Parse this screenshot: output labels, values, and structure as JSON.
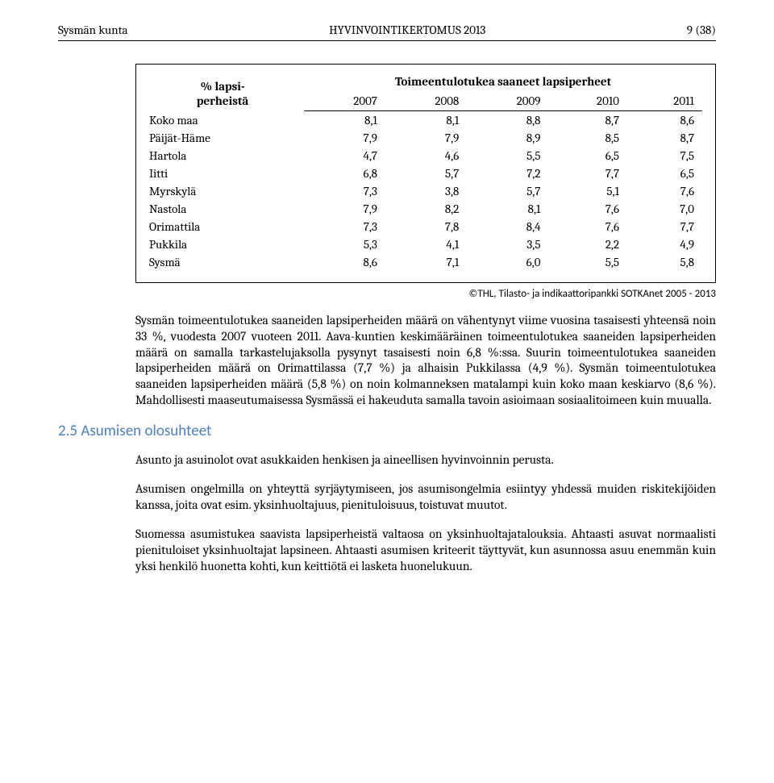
{
  "header": {
    "left": "Sysmän kunta",
    "center": "HYVINVOINTIKERTOMUS 2013",
    "right": "9 (38)"
  },
  "table": {
    "type": "table",
    "title": "Toimeentulotukea saaneet lapsiperheet",
    "row_header": "% lapsi-\nperheistä",
    "columns": [
      "2007",
      "2008",
      "2009",
      "2010",
      "2011"
    ],
    "rows": [
      {
        "label": "Koko maa",
        "values": [
          "8,1",
          "8,1",
          "8,8",
          "8,7",
          "8,6"
        ]
      },
      {
        "label": "Päijät-Häme",
        "values": [
          "7,9",
          "7,9",
          "8,9",
          "8,5",
          "8,7"
        ]
      },
      {
        "label": "Hartola",
        "values": [
          "4,7",
          "4,6",
          "5,5",
          "6,5",
          "7,5"
        ]
      },
      {
        "label": "Iitti",
        "values": [
          "6,8",
          "5,7",
          "7,2",
          "7,7",
          "6,5"
        ]
      },
      {
        "label": "Myrskylä",
        "values": [
          "7,3",
          "3,8",
          "5,7",
          "5,1",
          "7,6"
        ]
      },
      {
        "label": "Nastola",
        "values": [
          "7,9",
          "8,2",
          "8,1",
          "7,6",
          "7,0"
        ]
      },
      {
        "label": "Orimattila",
        "values": [
          "7,3",
          "7,8",
          "8,4",
          "7,6",
          "7,7"
        ]
      },
      {
        "label": "Pukkila",
        "values": [
          "5,3",
          "4,1",
          "3,5",
          "2,2",
          "4,9"
        ]
      },
      {
        "label": "Sysmä",
        "values": [
          "8,6",
          "7,1",
          "6,0",
          "5,5",
          "5,8"
        ]
      }
    ],
    "border_color": "#000000",
    "background_color": "#ffffff",
    "fontsize": 15
  },
  "source_note": "©THL, Tilasto- ja indikaattoripankki SOTKAnet 2005 - 2013",
  "paragraphs": {
    "p1": "Sysmän toimeentulotukea saaneiden lapsiperheiden määrä on vähentynyt viime vuosina tasaisesti yhteensä noin 33 %, vuodesta 2007 vuoteen 2011. Aava-kuntien keskimääräinen toimeentulotukea saaneiden lapsiperheiden määrä on samalla tarkastelujaksolla pysynyt tasaisesti noin 6,8 %:ssa. Suurin toimeentulotukea saaneiden lapsiperheiden määrä on Orimattilassa (7,7 %) ja alhaisin Pukkilassa (4,9 %). Sysmän toimeentulotukea saaneiden lapsiperheiden määrä (5,8 %) on noin kolmanneksen matalampi kuin koko maan keskiarvo (8,6 %). Mahdollisesti maaseutumaisessa Sysmässä ei hakeuduta samalla tavoin asioimaan sosiaalitoimeen kuin muualla.",
    "p2": "Asunto ja asuinolot ovat asukkaiden henkisen ja aineellisen hyvinvoinnin perusta.",
    "p3": "Asumisen ongelmilla on yhteyttä syrjäytymiseen, jos asumisongelmia esiintyy yhdessä muiden riskitekijöiden kanssa, joita ovat esim.  yksinhuoltajuus, pienituloisuus, toistuvat muutot.",
    "p4": "Suomessa asumistukea saavista lapsiperheistä valtaosa on yksinhuoltajatalouksia. Ahtaasti asuvat normaalisti pienituloiset yksinhuoltajat lapsineen. Ahtaasti asumisen kriteerit täyttyvät, kun asunnossa asuu enemmän kuin yksi henkilö huonetta kohti, kun keittiötä ei lasketa huonelukuun."
  },
  "section_heading": "2.5 Asumisen olosuhteet",
  "colors": {
    "heading_color": "#4f81bd",
    "text_color": "#000000",
    "background": "#ffffff"
  }
}
